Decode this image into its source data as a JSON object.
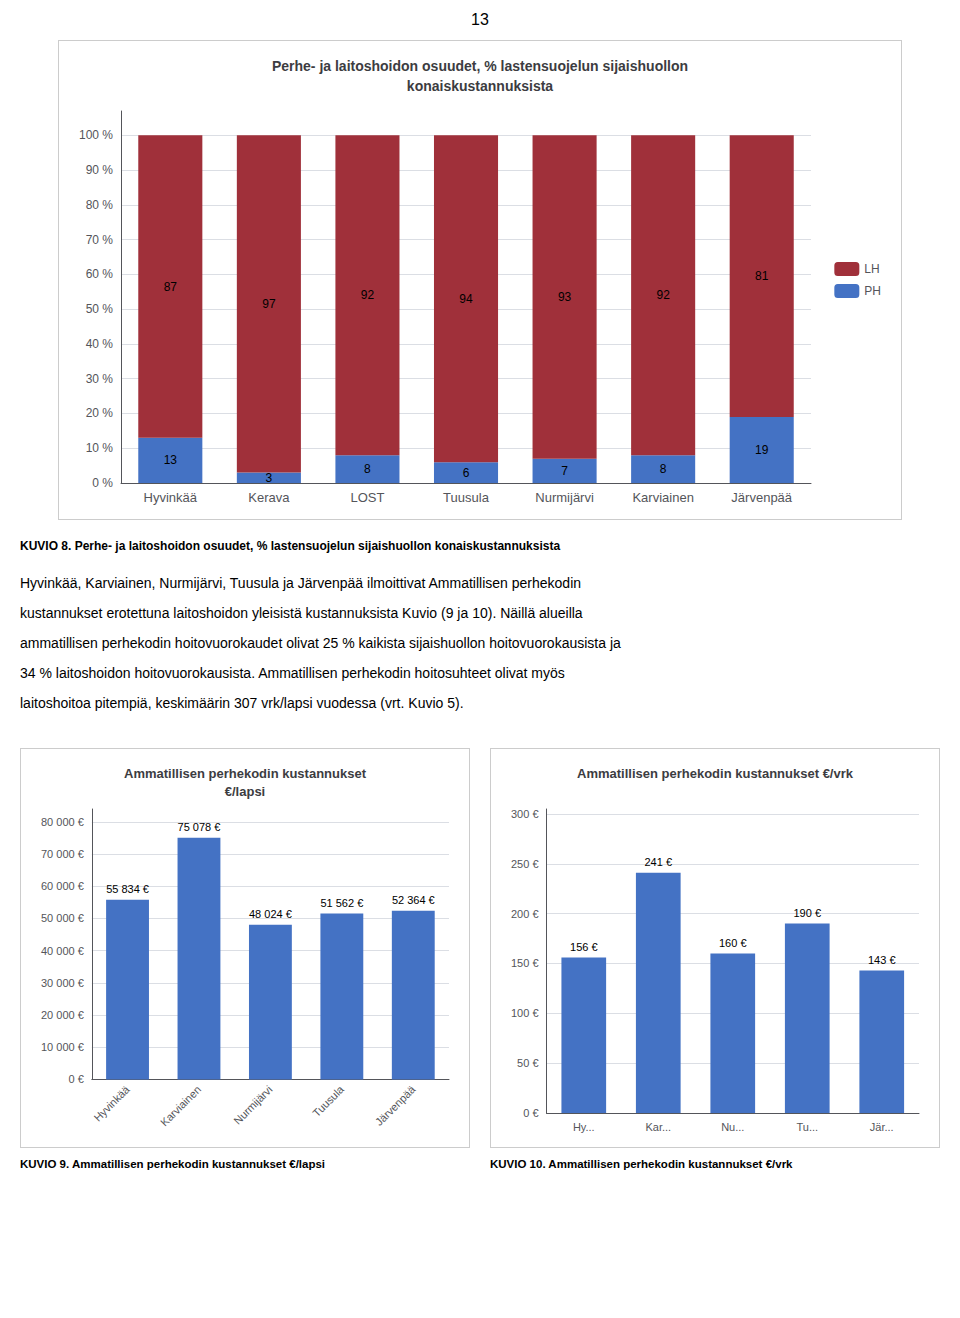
{
  "page_number": "13",
  "body_lines": [
    "Hyvinkää, Karviainen, Nurmijärvi, Tuusula ja Järvenpää ilmoittivat Ammatillisen perhekodin",
    "kustannukset erotettuna laitoshoidon yleisistä kustannuksista Kuvio (9 ja 10). Näillä alueilla",
    "ammatillisen perhekodin hoitovuorokaudet olivat 25 % kaikista sijaishuollon hoitovuorokausista ja",
    "34 % laitoshoidon hoitovuorokausista. Ammatillisen perhekodin hoitosuhteet olivat myös",
    "laitoshoitoa pitempiä, keskimäärin 307 vrk/lapsi vuodessa (vrt. Kuvio 5)."
  ],
  "chart_data": [
    {
      "type": "bar",
      "title": "Perhe- ja laitoshoidon osuudet, % lastensuojelun sijaishuollon\nkonaiskustannuksista",
      "categories": [
        "Hyvinkää",
        "Kerava",
        "LOST",
        "Tuusula",
        "Nurmijärvi",
        "Karviainen",
        "Järvenpää"
      ],
      "series": [
        {
          "name": "PH",
          "color": "#4472c4",
          "values": [
            13,
            3,
            8,
            6,
            7,
            8,
            19
          ]
        },
        {
          "name": "LH",
          "color": "#a0303a",
          "values": [
            87,
            97,
            92,
            94,
            93,
            92,
            81
          ]
        }
      ],
      "stacked": true,
      "data_labels": true,
      "ylim": [
        0,
        107
      ],
      "yticks": [
        {
          "value": 0,
          "label": "0 %"
        },
        {
          "value": 10,
          "label": "10 %"
        },
        {
          "value": 20,
          "label": "20 %"
        },
        {
          "value": 30,
          "label": "30 %"
        },
        {
          "value": 40,
          "label": "40 %"
        },
        {
          "value": 50,
          "label": "50 %"
        },
        {
          "value": 60,
          "label": "60 %"
        },
        {
          "value": 70,
          "label": "70 %"
        },
        {
          "value": 80,
          "label": "80 %"
        },
        {
          "value": 90,
          "label": "90 %"
        },
        {
          "value": 100,
          "label": "100 %"
        }
      ],
      "grid": true,
      "legend": "right",
      "caption": "KUVIO 8. Perhe- ja laitoshoidon osuudet, % lastensuojelun sijaishuollon konaiskustannuksista"
    },
    {
      "type": "bar",
      "title": "Ammatillisen perhekodin kustannukset\n€/lapsi",
      "categories": [
        "Hyvinkää",
        "Karviainen",
        "Nurmijärvi",
        "Tuusula",
        "Järvenpää"
      ],
      "values": [
        55834,
        75078,
        48024,
        51562,
        52364
      ],
      "value_labels": [
        "55 834 €",
        "75 078 €",
        "48 024 €",
        "51 562 €",
        "52 364 €"
      ],
      "color": "#4472c4",
      "data_labels": true,
      "ylim": [
        0,
        84000
      ],
      "yticks": [
        {
          "value": 0,
          "label": "0 €"
        },
        {
          "value": 10000,
          "label": "10 000 €"
        },
        {
          "value": 20000,
          "label": "20 000 €"
        },
        {
          "value": 30000,
          "label": "30 000 €"
        },
        {
          "value": 40000,
          "label": "40 000 €"
        },
        {
          "value": 50000,
          "label": "50 000 €"
        },
        {
          "value": 60000,
          "label": "60 000 €"
        },
        {
          "value": 70000,
          "label": "70 000 €"
        },
        {
          "value": 80000,
          "label": "80 000 €"
        }
      ],
      "grid": true,
      "caption": "KUVIO 9. Ammatillisen perhekodin kustannukset €/lapsi"
    },
    {
      "type": "bar",
      "title": "Ammatillisen perhekodin kustannukset €/vrk",
      "categories": [
        "Hy...",
        "Kar...",
        "Nu...",
        "Tu...",
        "Jär..."
      ],
      "values": [
        156,
        241,
        160,
        190,
        143
      ],
      "value_labels": [
        "156 €",
        "241 €",
        "160 €",
        "190 €",
        "143 €"
      ],
      "color": "#4472c4",
      "data_labels": true,
      "ylim": [
        0,
        305
      ],
      "yticks": [
        {
          "value": 0,
          "label": "0 €"
        },
        {
          "value": 50,
          "label": "50 €"
        },
        {
          "value": 100,
          "label": "100 €"
        },
        {
          "value": 150,
          "label": "150 €"
        },
        {
          "value": 200,
          "label": "200 €"
        },
        {
          "value": 250,
          "label": "250 €"
        },
        {
          "value": 300,
          "label": "300 €"
        }
      ],
      "grid": true,
      "caption": "KUVIO 10. Ammatillisen perhekodin kustannukset €/vrk"
    }
  ]
}
